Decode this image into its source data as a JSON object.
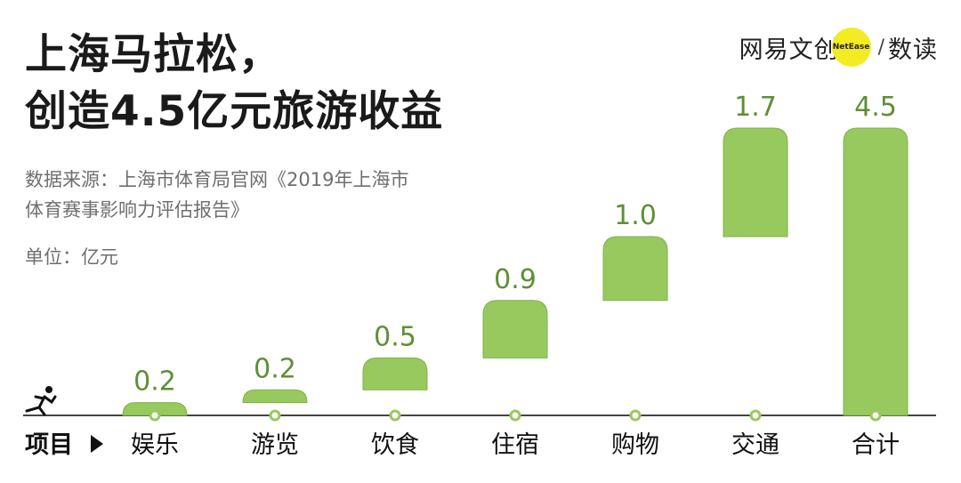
{
  "title_line1": "上海马拉松，",
  "title_line2": "创造4.5亿元旅游收益",
  "source_line1": "数据来源：上海市体育局官网《2019年上海市",
  "source_line2": "体育赛事影响力评估报告》",
  "unit": "单位：亿元",
  "logo": {
    "brand": "网易文创",
    "badge": "NetEase",
    "slash": "/",
    "brand2": "数读"
  },
  "x_header": "项目",
  "x_header_icon": "triangle-right-icon",
  "axis_icon": "runner-icon",
  "colors": {
    "bar": "#98c95f",
    "bar_stroke": "#7fb24a",
    "value_text": "#5d8f35",
    "axis": "#444444",
    "dot": "#98c95f",
    "logo_badge": "#f4ec22"
  },
  "chart_data": {
    "type": "waterfall",
    "categories": [
      "娱乐",
      "游览",
      "饮食",
      "住宿",
      "购物",
      "交通",
      "合计"
    ],
    "values": [
      0.2,
      0.2,
      0.5,
      0.9,
      1.0,
      1.7,
      4.5
    ],
    "value_labels": [
      "0.2",
      "0.2",
      "0.5",
      "0.9",
      "1.0",
      "1.7",
      "4.5"
    ],
    "total_index": 6,
    "ylim": [
      0,
      4.5
    ],
    "grid": false,
    "legend": "none"
  }
}
